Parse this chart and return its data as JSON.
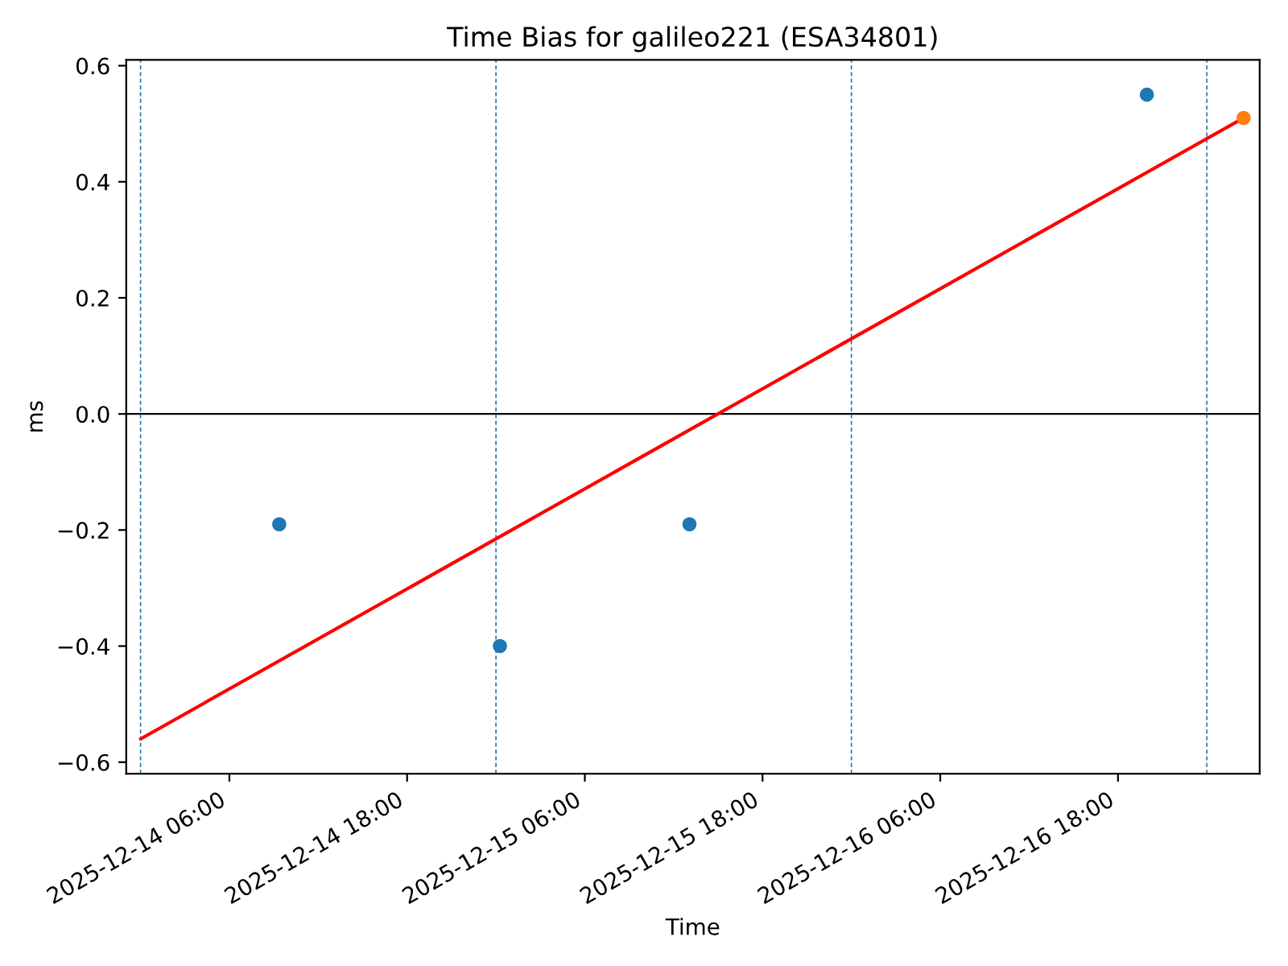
{
  "chart_data": {
    "type": "scatter",
    "title": "Time Bias for galileo221 (ESA34801)",
    "xlabel": "Time",
    "ylabel": "ms",
    "series": [
      {
        "color": "#1f77b4",
        "marker": "circle",
        "x": [
          "2025-12-14T09:22",
          "2025-12-15T00:16",
          "2025-12-15T13:04",
          "2025-12-16T19:57"
        ],
        "values": [
          -0.19,
          -0.4,
          -0.19,
          0.55
        ]
      },
      {
        "color": "#ff7f0e",
        "marker": "circle",
        "x": [
          "2025-12-17T02:29"
        ],
        "values": [
          0.51
        ]
      },
      {
        "type": "line",
        "color": "#ff0000",
        "line_style": "solid",
        "x": [
          "2025-12-14T00:00",
          "2025-12-17T02:29"
        ],
        "values": [
          -0.56,
          0.51
        ]
      }
    ],
    "xlim": [
      "2025-12-13T23:02",
      "2025-12-17T03:34"
    ],
    "xticks": [
      {
        "value": "2025-12-14T06:00",
        "label": "2025-12-14 06:00"
      },
      {
        "value": "2025-12-14T18:00",
        "label": "2025-12-14 18:00"
      },
      {
        "value": "2025-12-15T06:00",
        "label": "2025-12-15 06:00"
      },
      {
        "value": "2025-12-15T18:00",
        "label": "2025-12-15 18:00"
      },
      {
        "value": "2025-12-16T06:00",
        "label": "2025-12-16 06:00"
      },
      {
        "value": "2025-12-16T18:00",
        "label": "2025-12-16 18:00"
      }
    ],
    "ylim": [
      -0.62,
      0.61
    ],
    "yticks": [
      {
        "value": -0.6,
        "label": "−0.6"
      },
      {
        "value": -0.4,
        "label": "−0.4"
      },
      {
        "value": -0.2,
        "label": "−0.2"
      },
      {
        "value": 0,
        "label": "0.0"
      },
      {
        "value": 0.2,
        "label": "0.2"
      },
      {
        "value": 0.4,
        "label": "0.4"
      },
      {
        "value": 0.6,
        "label": "0.6"
      }
    ],
    "ref_lines": [
      {
        "axis": "y",
        "value": 0,
        "color": "#000000",
        "line_style": "solid"
      },
      {
        "axis": "x",
        "value": "2025-12-14T00:00",
        "color": "#1f77b4",
        "line_style": "dashed"
      },
      {
        "axis": "x",
        "value": "2025-12-15T00:00",
        "color": "#1f77b4",
        "line_style": "dashed"
      },
      {
        "axis": "x",
        "value": "2025-12-16T00:00",
        "color": "#1f77b4",
        "line_style": "dashed"
      },
      {
        "axis": "x",
        "value": "2025-12-17T00:00",
        "color": "#1f77b4",
        "line_style": "dashed"
      }
    ]
  }
}
